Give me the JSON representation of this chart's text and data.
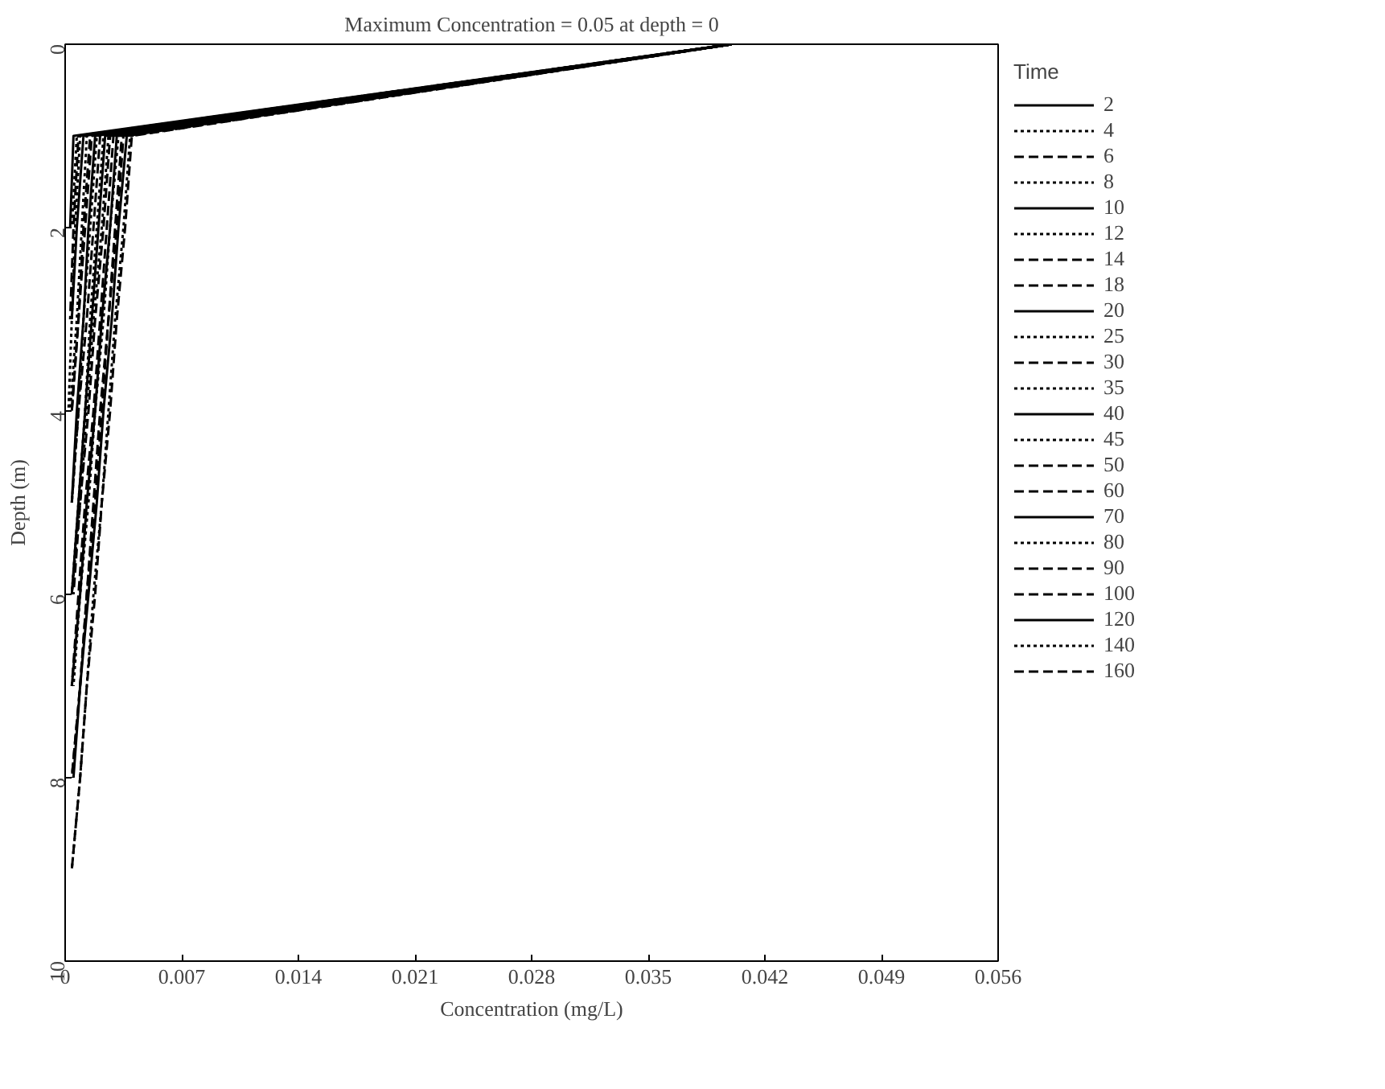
{
  "chart_data": {
    "type": "line",
    "title": "Maximum Concentration = 0.05 at depth = 0",
    "xlabel": "Concentration (mg/L)",
    "ylabel": "Depth (m)",
    "legend_title": "Time",
    "xlim": [
      0,
      0.056
    ],
    "xticks": [
      0,
      0.007,
      0.014,
      0.021,
      0.028,
      0.035,
      0.042,
      0.049,
      0.056
    ],
    "ylim": [
      10,
      0
    ],
    "yticks": [
      0,
      2,
      4,
      6,
      8,
      10
    ],
    "grid": false,
    "legend": "right",
    "series": [
      {
        "name": "2",
        "color": "#000000",
        "line_style": "solid",
        "x": [
          0.04,
          0.0005,
          0.0003
        ],
        "values": [
          0,
          1,
          2
        ]
      },
      {
        "name": "4",
        "color": "#000000",
        "line_style": "dotted",
        "x": [
          0.04,
          0.0007,
          0.0004
        ],
        "values": [
          0,
          1,
          2
        ]
      },
      {
        "name": "6",
        "color": "#000000",
        "line_style": "dashed",
        "x": [
          0.04,
          0.0008,
          0.0005,
          0.0003
        ],
        "values": [
          0,
          1,
          2,
          3
        ]
      },
      {
        "name": "8",
        "color": "#000000",
        "line_style": "dotted",
        "x": [
          0.04,
          0.0009,
          0.0006,
          0.0004,
          0.0002
        ],
        "values": [
          0,
          1,
          2,
          3,
          4
        ]
      },
      {
        "name": "10",
        "color": "#000000",
        "line_style": "solid",
        "x": [
          0.04,
          0.0011,
          0.0007,
          0.0004
        ],
        "values": [
          0,
          1,
          2,
          3
        ]
      },
      {
        "name": "12",
        "color": "#000000",
        "line_style": "dotted",
        "x": [
          0.04,
          0.0013,
          0.001,
          0.0007,
          0.0003
        ],
        "values": [
          0,
          1,
          2,
          3,
          4
        ]
      },
      {
        "name": "14",
        "color": "#000000",
        "line_style": "dashed",
        "x": [
          0.04,
          0.0015,
          0.0011,
          0.0008,
          0.0004
        ],
        "values": [
          0,
          1,
          2,
          3,
          4
        ]
      },
      {
        "name": "18",
        "color": "#000000",
        "line_style": "dashed",
        "x": [
          0.04,
          0.0016,
          0.0012,
          0.0008,
          0.0004
        ],
        "values": [
          0,
          1,
          2,
          3,
          4
        ]
      },
      {
        "name": "20",
        "color": "#000000",
        "line_style": "solid",
        "x": [
          0.04,
          0.0018,
          0.0014,
          0.0011,
          0.0007,
          0.0004
        ],
        "values": [
          0,
          1,
          2,
          3,
          4,
          5
        ]
      },
      {
        "name": "25",
        "color": "#000000",
        "line_style": "dotted",
        "x": [
          0.04,
          0.0019,
          0.0015,
          0.0011,
          0.0008,
          0.0004
        ],
        "values": [
          0,
          1,
          2,
          3,
          4,
          5
        ]
      },
      {
        "name": "30",
        "color": "#000000",
        "line_style": "dashed",
        "x": [
          0.04,
          0.0021,
          0.0017,
          0.0013,
          0.0008,
          0.0004
        ],
        "values": [
          0,
          1,
          2,
          3,
          4,
          5
        ]
      },
      {
        "name": "35",
        "color": "#000000",
        "line_style": "dotted",
        "x": [
          0.04,
          0.0023,
          0.0019,
          0.0015,
          0.0012,
          0.0008,
          0.0004
        ],
        "values": [
          0,
          1,
          2,
          3,
          4,
          5,
          6
        ]
      },
      {
        "name": "40",
        "color": "#000000",
        "line_style": "solid",
        "x": [
          0.04,
          0.0024,
          0.002,
          0.0016,
          0.0012,
          0.0008,
          0.0004
        ],
        "values": [
          0,
          1,
          2,
          3,
          4,
          5,
          6
        ]
      },
      {
        "name": "45",
        "color": "#000000",
        "line_style": "dotted",
        "x": [
          0.04,
          0.0026,
          0.0022,
          0.0017,
          0.0013,
          0.0009,
          0.0004
        ],
        "values": [
          0,
          1,
          2,
          3,
          4,
          5,
          6
        ]
      },
      {
        "name": "50",
        "color": "#000000",
        "line_style": "dashed",
        "x": [
          0.04,
          0.0027,
          0.0023,
          0.0018,
          0.0014,
          0.0009,
          0.0005
        ],
        "values": [
          0,
          1,
          2,
          3,
          4,
          5,
          6
        ]
      },
      {
        "name": "60",
        "color": "#000000",
        "line_style": "dashed",
        "x": [
          0.04,
          0.0029,
          0.0025,
          0.0021,
          0.0017,
          0.0012,
          0.0008,
          0.0004
        ],
        "values": [
          0,
          1,
          2,
          3,
          4,
          5,
          6,
          7
        ]
      },
      {
        "name": "70",
        "color": "#000000",
        "line_style": "solid",
        "x": [
          0.04,
          0.0031,
          0.0027,
          0.0022,
          0.0018,
          0.0013,
          0.0009,
          0.0004
        ],
        "values": [
          0,
          1,
          2,
          3,
          4,
          5,
          6,
          7
        ]
      },
      {
        "name": "80",
        "color": "#000000",
        "line_style": "dotted",
        "x": [
          0.04,
          0.0032,
          0.0027,
          0.0023,
          0.0018,
          0.0014,
          0.0009,
          0.0005
        ],
        "values": [
          0,
          1,
          2,
          3,
          4,
          5,
          6,
          7
        ]
      },
      {
        "name": "90",
        "color": "#000000",
        "line_style": "dashed",
        "x": [
          0.04,
          0.0034,
          0.003,
          0.0026,
          0.0021,
          0.0017,
          0.0013,
          0.0009,
          0.0004
        ],
        "values": [
          0,
          1,
          2,
          3,
          4,
          5,
          6,
          7,
          8
        ]
      },
      {
        "name": "100",
        "color": "#000000",
        "line_style": "dashed",
        "x": [
          0.04,
          0.0035,
          0.0031,
          0.0026,
          0.0022,
          0.0018,
          0.0013,
          0.0009,
          0.0004
        ],
        "values": [
          0,
          1,
          2,
          3,
          4,
          5,
          6,
          7,
          8
        ]
      },
      {
        "name": "120",
        "color": "#000000",
        "line_style": "solid",
        "x": [
          0.04,
          0.0037,
          0.0032,
          0.0028,
          0.0023,
          0.0019,
          0.0014,
          0.0009,
          0.0005
        ],
        "values": [
          0,
          1,
          2,
          3,
          4,
          5,
          6,
          7,
          8
        ]
      },
      {
        "name": "140",
        "color": "#000000",
        "line_style": "dotted",
        "x": [
          0.04,
          0.0039,
          0.0035,
          0.003,
          0.0026,
          0.0022,
          0.0017,
          0.0013,
          0.0009,
          0.0004
        ],
        "values": [
          0,
          1,
          2,
          3,
          4,
          5,
          6,
          7,
          8,
          9
        ]
      },
      {
        "name": "160",
        "color": "#000000",
        "line_style": "dashed",
        "x": [
          0.04,
          0.004,
          0.0036,
          0.0031,
          0.0027,
          0.0022,
          0.0018,
          0.0013,
          0.0009,
          0.0004
        ],
        "values": [
          0,
          1,
          2,
          3,
          4,
          5,
          6,
          7,
          8,
          9
        ]
      }
    ]
  }
}
